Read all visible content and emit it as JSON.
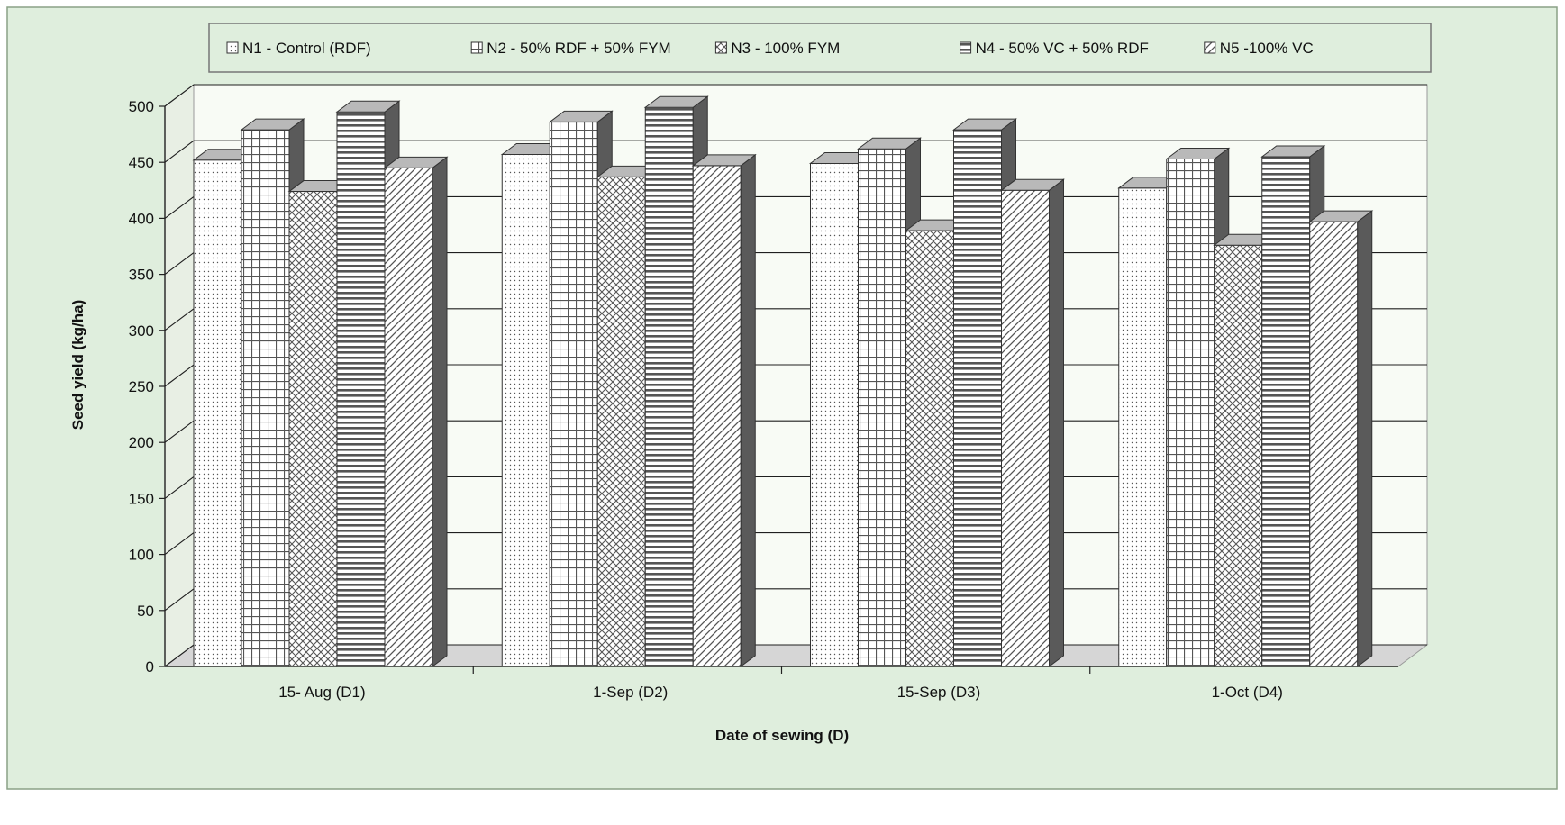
{
  "colors": {
    "outer_background": "#ffffff",
    "chart_area": "#dfeedd",
    "plot_wall": "#f8fbf5",
    "gridline": "#1f1f1f",
    "bar_fill": "#ffffff",
    "bar_pattern": "#555555",
    "bar_side": "#5a5a5a",
    "bar_top": "#b9b9b9",
    "legend_background": "#dfeedd",
    "legend_border": "#777777"
  },
  "chart_data": {
    "type": "bar",
    "style": "3d-clustered-column",
    "xlabel": "Date of sewing (D)",
    "ylabel": "Seed yield (kg/ha)",
    "ylim": [
      0,
      500
    ],
    "yticks": [
      0,
      50,
      100,
      150,
      200,
      250,
      300,
      350,
      400,
      450,
      500
    ],
    "grid": true,
    "legend_position": "top",
    "categories": [
      "15- Aug (D1)",
      "1-Sep (D2)",
      "15-Sep (D3)",
      "1-Oct (D4)"
    ],
    "series": [
      {
        "name": "N1 - Control (RDF)",
        "pattern": "dots",
        "values": [
          452,
          457,
          449,
          427
        ]
      },
      {
        "name": "N2 - 50% RDF + 50% FYM",
        "pattern": "grid",
        "values": [
          479,
          486,
          462,
          453
        ]
      },
      {
        "name": "N3 - 100% FYM",
        "pattern": "crosshatch",
        "values": [
          424,
          437,
          389,
          376
        ]
      },
      {
        "name": "N4 - 50% VC + 50% RDF",
        "pattern": "horizontal",
        "values": [
          495,
          499,
          479,
          455
        ]
      },
      {
        "name": "N5 -100% VC",
        "pattern": "diagonal",
        "values": [
          445,
          447,
          425,
          397
        ]
      }
    ]
  }
}
